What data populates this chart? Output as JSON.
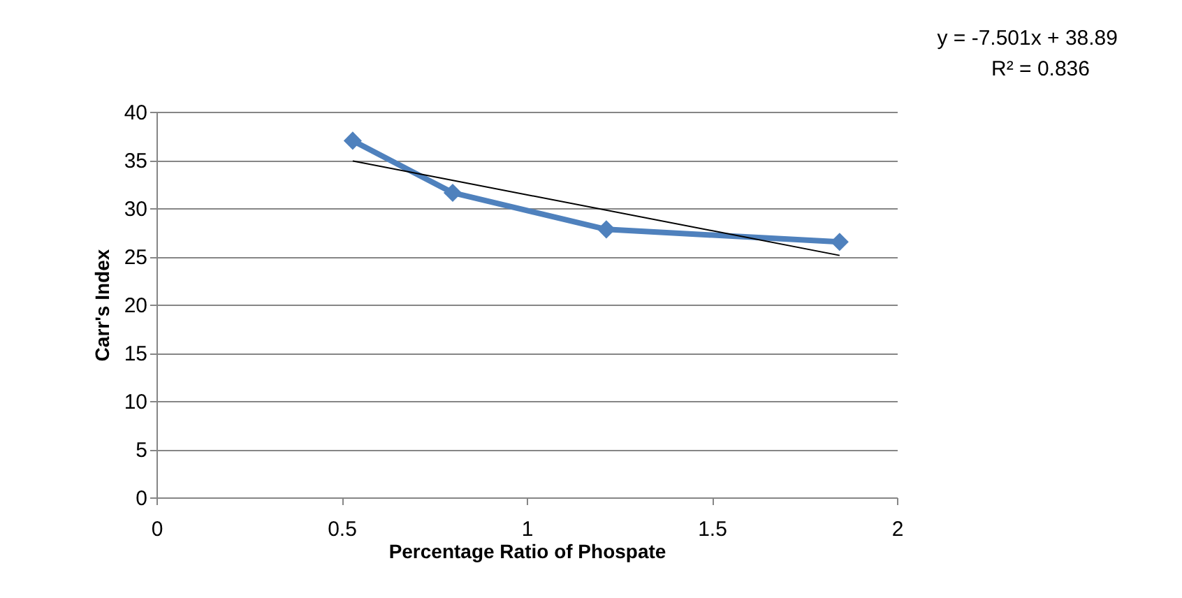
{
  "chart_data": {
    "type": "line",
    "xlabel": "Percentage Ratio of Phospate",
    "ylabel": "Carr's Index",
    "annotations": [
      "y = -7.501x + 38.89",
      "R² = 0.836"
    ],
    "series": [
      {
        "color": "#4f81bd",
        "x": [
          0.53,
          0.8,
          1.215,
          1.845
        ],
        "values": [
          37,
          31.6,
          27.8,
          26.5
        ],
        "marker": "diamond"
      },
      {
        "type": "line",
        "color": "#000000",
        "x": [
          0.53,
          1.845
        ],
        "values": [
          34.9,
          25.1
        ],
        "marker": "none"
      }
    ],
    "xlim": [
      0,
      2
    ],
    "xticks": [
      0,
      0.5,
      1,
      1.5,
      2
    ],
    "ylim": [
      0,
      40
    ],
    "yticks": [
      0,
      5,
      10,
      15,
      20,
      25,
      30,
      35,
      40
    ],
    "grid": "y",
    "line_style": "solid"
  }
}
